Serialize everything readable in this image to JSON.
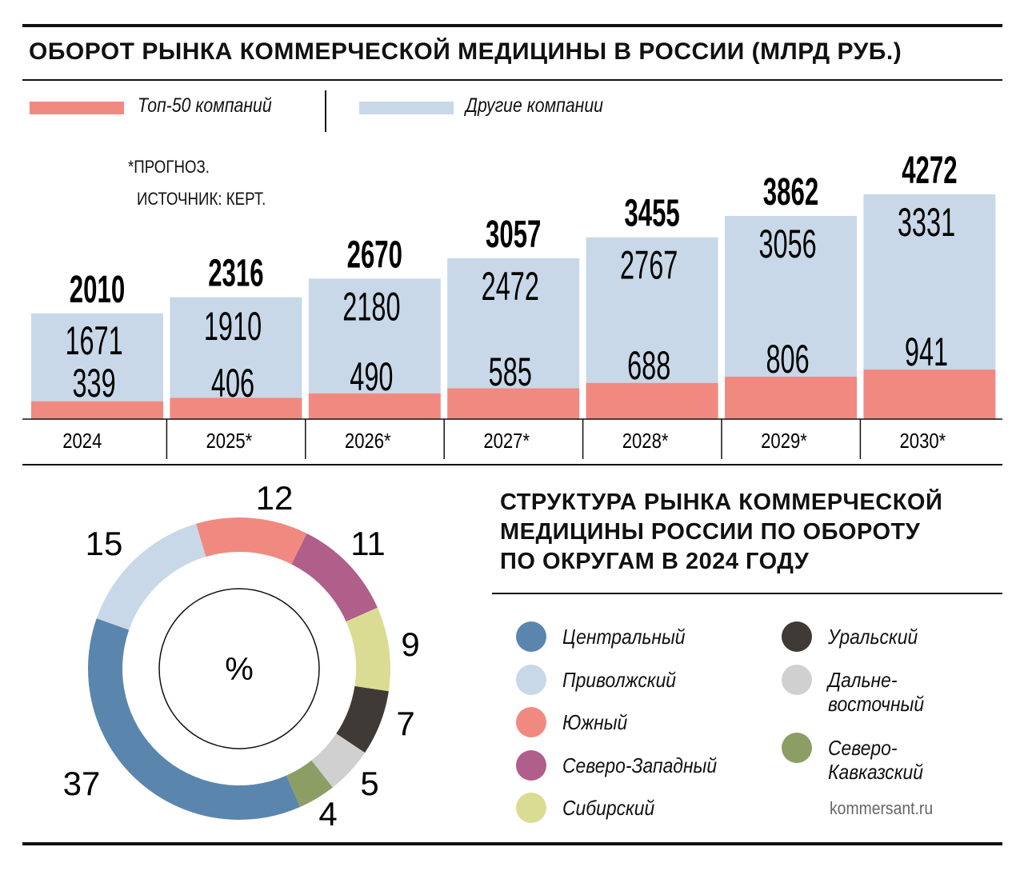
{
  "chart_data": [
    {
      "type": "bar",
      "stacked": true,
      "title": "ОБОРОТ РЫНКА КОММЕРЧЕСКОЙ МЕДИЦИНЫ В РОССИИ (МЛРД РУБ.)",
      "categories": [
        "2024",
        "2025*",
        "2026*",
        "2027*",
        "2028*",
        "2029*",
        "2030*"
      ],
      "series": [
        {
          "name": "Топ-50 компаний",
          "color": "#F08A80",
          "values": [
            339,
            406,
            490,
            585,
            688,
            806,
            941
          ]
        },
        {
          "name": "Другие компании",
          "color": "#C8D8E8",
          "values": [
            1671,
            1910,
            2180,
            2472,
            2767,
            3056,
            3331
          ]
        }
      ],
      "totals": [
        2010,
        2316,
        2670,
        3057,
        3455,
        3862,
        4272
      ],
      "notes": [
        "*ПРОГНОЗ.",
        "ИСТОЧНИК: КЕРТ."
      ],
      "legend": "top-left"
    },
    {
      "type": "pie",
      "donut": true,
      "title": "СТРУКТУРА РЫНКА КОММЕРЧЕСКОЙ МЕДИЦИНЫ РОССИИ ПО ОБОРОТУ ПО ОКРУГАМ В 2024 ГОДУ",
      "center_label": "%",
      "slices": [
        {
          "name": "Южный",
          "value": 12,
          "color": "#F08A80"
        },
        {
          "name": "Северо-Западный",
          "value": 11,
          "color": "#B05E8A"
        },
        {
          "name": "Сибирский",
          "value": 9,
          "color": "#DBDC94"
        },
        {
          "name": "Уральский",
          "value": 7,
          "color": "#3F3A35"
        },
        {
          "name": "Дальне-восточный",
          "value": 5,
          "color": "#D0D0D0"
        },
        {
          "name": "Северо-Кавказский",
          "value": 4,
          "color": "#8C9E64"
        },
        {
          "name": "Центральный",
          "value": 37,
          "color": "#5A86AE"
        },
        {
          "name": "Приволжский",
          "value": 15,
          "color": "#C8D8E8"
        }
      ],
      "legend": "right"
    }
  ],
  "title_lines": [
    "СТРУКТУРА РЫНКА КОММЕРЧЕСКОЙ",
    "МЕДИЦИНЫ РОССИИ ПО ОБОРОТУ",
    "ПО ОКРУГАМ В 2024 ГОДУ"
  ],
  "legend_left": [
    {
      "label": "Центральный",
      "color": "#5A86AE"
    },
    {
      "label": "Приволжский",
      "color": "#C8D8E8"
    },
    {
      "label": "Южный",
      "color": "#F08A80"
    },
    {
      "label": "Северо-Западный",
      "color": "#B05E8A"
    },
    {
      "label": "Сибирский",
      "color": "#DBDC94"
    }
  ],
  "legend_right": [
    {
      "label": "Уральский",
      "color": "#3F3A35"
    },
    {
      "label": "Дальне-",
      "label2": "восточный",
      "color": "#D0D0D0"
    },
    {
      "label": "Северо-",
      "label2": "Кавказский",
      "color": "#8C9E64"
    }
  ],
  "credit": "kommersant.ru"
}
